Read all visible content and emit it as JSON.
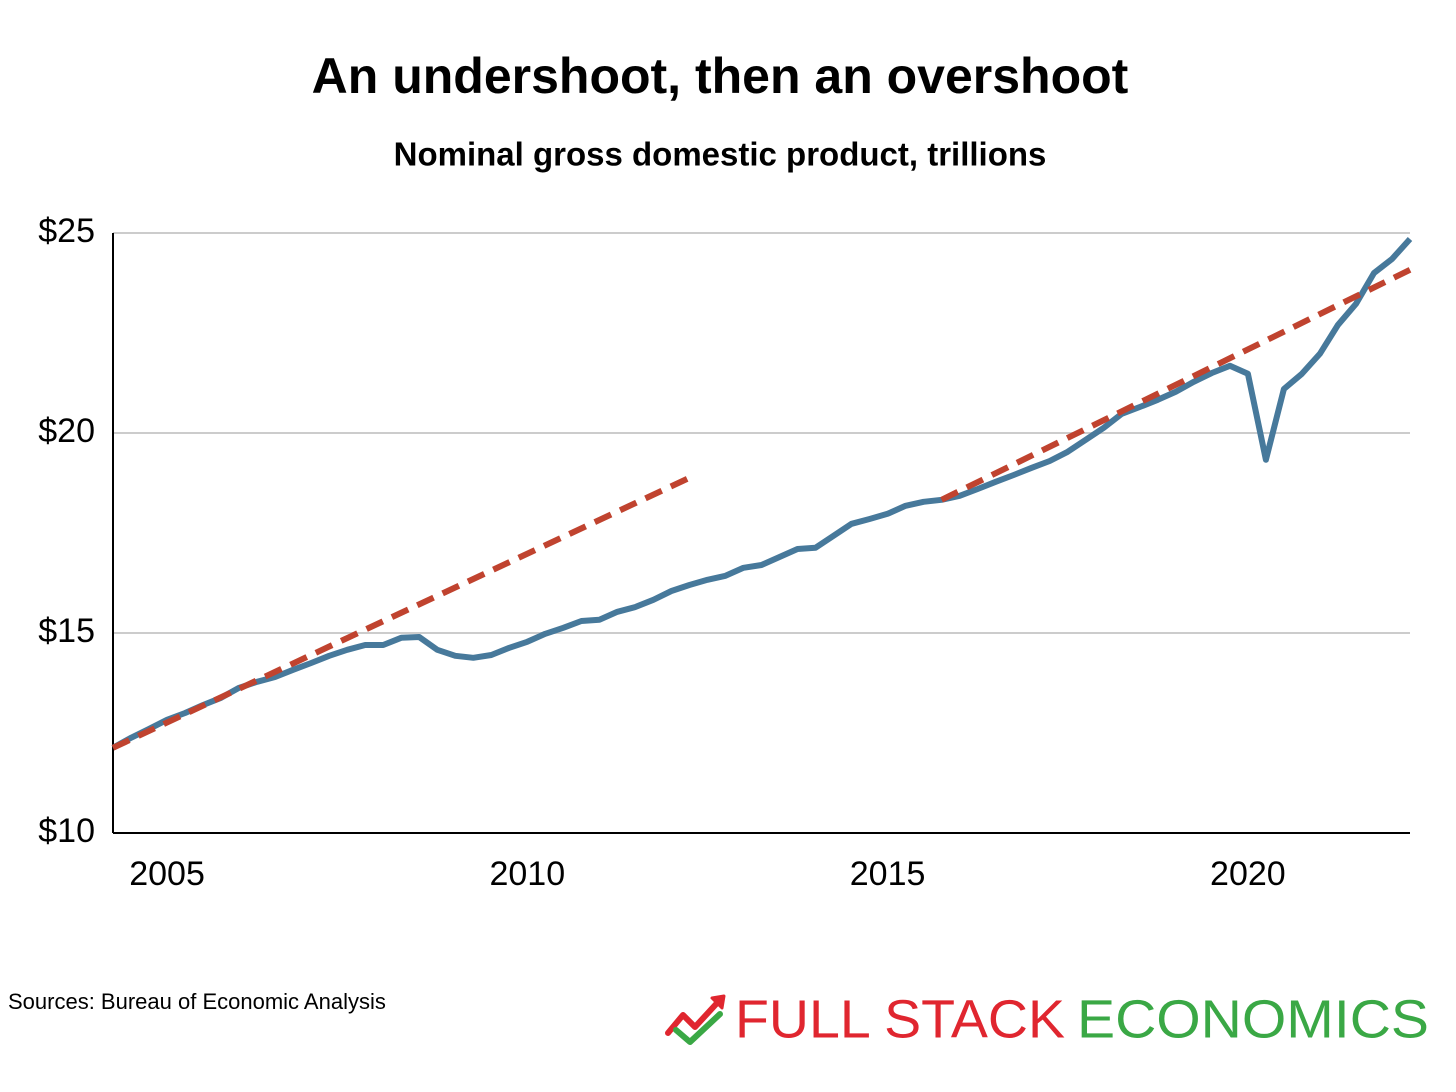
{
  "chart_data": {
    "type": "line",
    "title": "An undershoot, then an overshoot",
    "subtitle": "Nominal gross domestic product, trillions",
    "series": [
      {
        "color": "#47799b",
        "dash": false,
        "x": [
          2004.25,
          2004.5,
          2004.75,
          2005,
          2005.25,
          2005.5,
          2005.75,
          2006,
          2006.25,
          2006.5,
          2006.75,
          2007,
          2007.25,
          2007.5,
          2007.75,
          2008,
          2008.25,
          2008.5,
          2008.75,
          2009,
          2009.25,
          2009.5,
          2009.75,
          2010,
          2010.25,
          2010.5,
          2010.75,
          2011,
          2011.25,
          2011.5,
          2011.75,
          2012,
          2012.25,
          2012.5,
          2012.75,
          2013,
          2013.25,
          2013.5,
          2013.75,
          2014,
          2014.25,
          2014.5,
          2014.75,
          2015,
          2015.25,
          2015.5,
          2015.75,
          2016,
          2016.25,
          2016.5,
          2016.75,
          2017,
          2017.25,
          2017.5,
          2017.75,
          2018,
          2018.25,
          2018.5,
          2018.75,
          2019,
          2019.25,
          2019.5,
          2019.75,
          2020,
          2020.25,
          2020.5,
          2020.75,
          2021,
          2021.25,
          2021.5,
          2021.75,
          2022,
          2022.25
        ],
        "values": [
          12.13,
          12.38,
          12.6,
          12.83,
          13.0,
          13.2,
          13.38,
          13.63,
          13.78,
          13.9,
          14.08,
          14.25,
          14.43,
          14.58,
          14.7,
          14.7,
          14.88,
          14.9,
          14.58,
          14.43,
          14.38,
          14.45,
          14.63,
          14.78,
          14.98,
          15.13,
          15.3,
          15.33,
          15.53,
          15.65,
          15.83,
          16.05,
          16.2,
          16.33,
          16.43,
          16.63,
          16.7,
          16.9,
          17.1,
          17.13,
          17.43,
          17.73,
          17.85,
          17.98,
          18.18,
          18.28,
          18.33,
          18.43,
          18.6,
          18.78,
          18.95,
          19.13,
          19.3,
          19.53,
          19.83,
          20.13,
          20.48,
          20.65,
          20.83,
          21.03,
          21.28,
          21.5,
          21.68,
          21.48,
          19.33,
          21.1,
          21.48,
          21.98,
          22.7,
          23.23,
          24.0,
          24.35,
          24.85
        ]
      },
      {
        "color": "#c0432f",
        "dash": true,
        "x": [
          2004.25,
          2012.25
        ],
        "values": [
          12.13,
          18.88
        ]
      },
      {
        "color": "#c0432f",
        "dash": true,
        "x": [
          2015.75,
          2022.25
        ],
        "values": [
          18.33,
          24.08
        ]
      }
    ],
    "xlim": [
      2004.25,
      2022.25
    ],
    "xticks": [
      2005,
      2010,
      2015,
      2020
    ],
    "ylim": [
      10,
      25
    ],
    "yticks": [
      {
        "value": 10,
        "label": "$10"
      },
      {
        "value": 15,
        "label": "$15"
      },
      {
        "value": 20,
        "label": "$20"
      },
      {
        "value": 25,
        "label": "$25"
      }
    ],
    "grid": true
  },
  "source": "Sources: Bureau of Economic Analysis",
  "logo": {
    "first": "FULL STACK",
    "second": "ECONOMICS"
  }
}
